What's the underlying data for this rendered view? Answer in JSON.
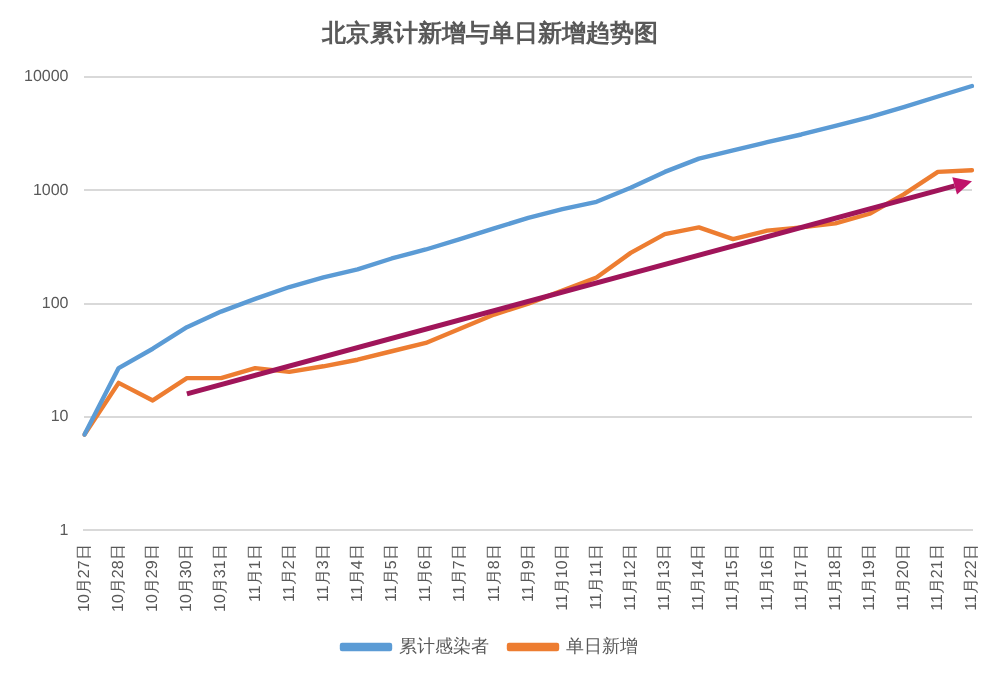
{
  "chart_data": {
    "type": "line",
    "title": "北京累计新增与单日新增趋势图",
    "categories": [
      "10月27日",
      "10月28日",
      "10月29日",
      "10月30日",
      "10月31日",
      "11月1日",
      "11月2日",
      "11月3日",
      "11月4日",
      "11月5日",
      "11月6日",
      "11月7日",
      "11月8日",
      "11月9日",
      "11月10日",
      "11月11日",
      "11月12日",
      "11月13日",
      "11月14日",
      "11月15日",
      "11月16日",
      "11月17日",
      "11月18日",
      "11月19日",
      "11月20日",
      "11月21日",
      "11月22日"
    ],
    "series": [
      {
        "name": "累计感染者",
        "color": "#5b9bd5",
        "values": [
          7,
          27,
          40,
          62,
          85,
          110,
          140,
          170,
          200,
          250,
          300,
          370,
          460,
          570,
          680,
          790,
          1050,
          1450,
          1900,
          2250,
          2650,
          3100,
          3700,
          4400,
          5400,
          6700,
          8300
        ]
      },
      {
        "name": "单日新增",
        "color": "#ed7d31",
        "values": [
          7,
          20,
          14,
          22,
          22,
          27,
          25,
          28,
          32,
          38,
          45,
          60,
          80,
          100,
          130,
          170,
          280,
          410,
          470,
          370,
          440,
          470,
          510,
          620,
          920,
          1450,
          1500
        ]
      }
    ],
    "log": "y",
    "ylim": [
      1,
      10000
    ],
    "yticks": [
      1,
      10,
      100,
      1000,
      10000
    ],
    "grid": "y",
    "legend": "bottom",
    "marker": "none",
    "line_style": "solid"
  }
}
